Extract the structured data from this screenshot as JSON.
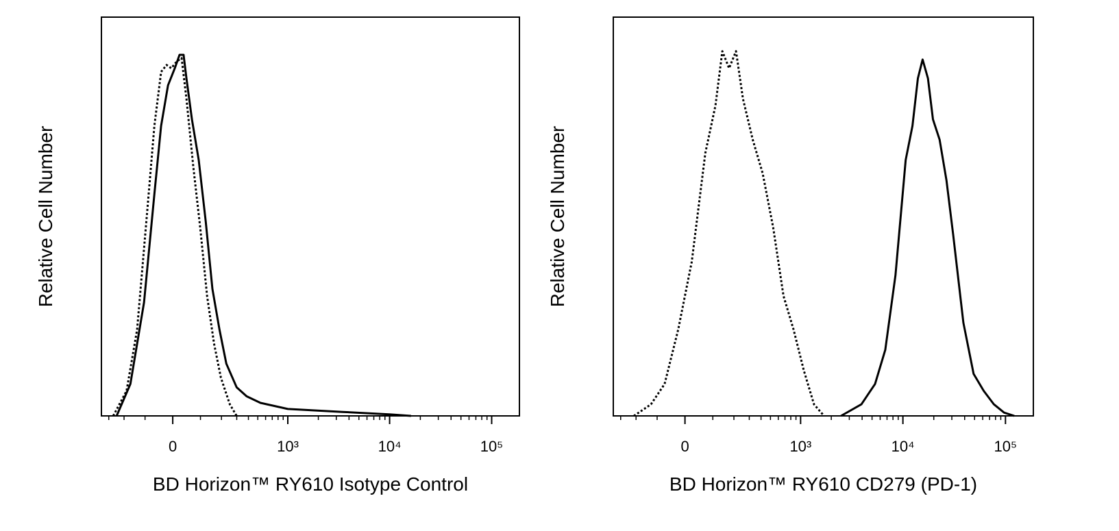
{
  "chart_data": [
    {
      "type": "line",
      "xlabel": "BD Horizon™ RY610 Isotype Control",
      "ylabel": "Relative Cell Number",
      "xscale": "arcsinh",
      "xlim": [
        -360,
        187000
      ],
      "ylim": [
        0,
        110
      ],
      "xticks": [
        0,
        {
          "value": 1000,
          "label": "10³"
        },
        {
          "value": 10000,
          "label": "10⁴"
        },
        {
          "value": 100000,
          "label": "10⁵"
        }
      ],
      "xminor_ticks": [
        -300,
        -200,
        -100,
        100,
        200,
        300,
        400,
        500,
        600,
        700,
        800,
        900,
        2000,
        3000,
        4000,
        5000,
        6000,
        7000,
        8000,
        9000,
        20000,
        30000,
        40000,
        50000,
        60000,
        70000,
        80000,
        90000
      ],
      "series": [
        {
          "color": "#000000",
          "style": "dotted",
          "x": [
            -268,
            -186,
            -134,
            -90,
            -64,
            -40,
            -21,
            -5,
            14,
            30,
            47,
            72,
            99,
            128,
            161,
            197,
            251,
            299
          ],
          "values": [
            0,
            6.9,
            23.8,
            57.5,
            80,
            94.9,
            96.8,
            95.9,
            97.8,
            98.7,
            87.5,
            68.7,
            51.9,
            33.1,
            19.9,
            10.5,
            3.2,
            0
          ]
        },
        {
          "color": "#000000",
          "style": "solid",
          "x": [
            -245,
            -166,
            -104,
            -64,
            -40,
            -16,
            7,
            23,
            37,
            47,
            67,
            93,
            122,
            153,
            189,
            229,
            299,
            383,
            532,
            1000,
            3470,
            10230,
            16200
          ],
          "values": [
            0,
            8.8,
            31.3,
            61.2,
            80,
            91.2,
            95.9,
            99.6,
            99.6,
            93.1,
            81.8,
            70.6,
            53.7,
            35,
            23.8,
            14.4,
            7.9,
            5.4,
            3.6,
            1.9,
            1.1,
            0.4,
            0
          ]
        }
      ]
    },
    {
      "type": "line",
      "xlabel": "BD Horizon™ RY610 CD279 (PD-1)",
      "ylabel": "Relative Cell Number",
      "xscale": "arcsinh",
      "xlim": [
        -360,
        187000
      ],
      "ylim": [
        0,
        110
      ],
      "xticks": [
        0,
        {
          "value": 1000,
          "label": "10³"
        },
        {
          "value": 10000,
          "label": "10⁴"
        },
        {
          "value": 100000,
          "label": "10⁵"
        }
      ],
      "xminor_ticks": [
        -300,
        -200,
        -100,
        100,
        200,
        300,
        400,
        500,
        600,
        700,
        800,
        900,
        2000,
        3000,
        4000,
        5000,
        6000,
        7000,
        8000,
        9000,
        20000,
        30000,
        40000,
        50000,
        60000,
        70000,
        80000,
        90000
      ],
      "series": [
        {
          "color": "#000000",
          "style": "dotted",
          "x": [
            -212,
            -126,
            -71,
            -23,
            23,
            71,
            111,
            141,
            174,
            212,
            255,
            327,
            416,
            534,
            677,
            853,
            1076,
            1354,
            1700
          ],
          "values": [
            0,
            3.2,
            8.8,
            23.8,
            42.5,
            72.5,
            85.6,
            100.6,
            95.9,
            100.6,
            87.5,
            76.2,
            66.9,
            51.9,
            33.1,
            23.8,
            12.5,
            3.2,
            0
          ]
        },
        {
          "color": "#000000",
          "style": "solid",
          "x": [
            2490,
            3940,
            5350,
            6730,
            8460,
            10640,
            12390,
            14000,
            15560,
            17560,
            19620,
            22800,
            26600,
            30900,
            38900,
            48900,
            61400,
            77100,
            97000,
            122000
          ],
          "values": [
            0,
            3.2,
            8.8,
            18.2,
            38.8,
            70.6,
            80,
            93.1,
            98.3,
            93.1,
            81.8,
            76.2,
            65,
            50,
            25.7,
            11.6,
            6.9,
            3.2,
            0.9,
            0
          ]
        }
      ]
    }
  ]
}
